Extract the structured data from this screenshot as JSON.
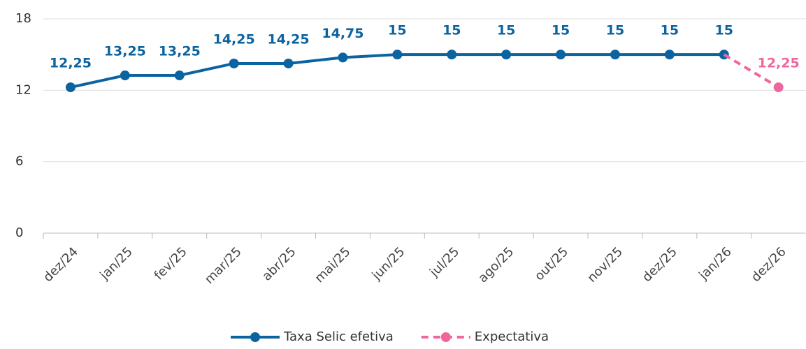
{
  "chart_data": {
    "type": "line",
    "categories": [
      "dez/24",
      "jan/25",
      "fev/25",
      "mar/25",
      "abr/25",
      "mai/25",
      "jun/25",
      "jul/25",
      "ago/25",
      "out/25",
      "nov/25",
      "dez/25",
      "jan/26",
      "dez/26"
    ],
    "series": [
      {
        "name": "Taxa Selic efetiva",
        "color": "#0b63a0",
        "dashed": false,
        "values": [
          12.25,
          13.25,
          13.25,
          14.25,
          14.25,
          14.75,
          15,
          15,
          15,
          15,
          15,
          15,
          15,
          null
        ],
        "value_labels": [
          "12,25",
          "13,25",
          "13,25",
          "14,25",
          "14,25",
          "14,75",
          "15",
          "15",
          "15",
          "15",
          "15",
          "15",
          "15",
          null
        ]
      },
      {
        "name": "Expectativa",
        "color": "#f0679e",
        "dashed": true,
        "values": [
          null,
          null,
          null,
          null,
          null,
          null,
          null,
          null,
          null,
          null,
          null,
          null,
          15,
          12.25
        ],
        "value_labels": [
          null,
          null,
          null,
          null,
          null,
          null,
          null,
          null,
          null,
          null,
          null,
          null,
          null,
          "12,25"
        ]
      }
    ],
    "ylim": [
      0,
      18
    ],
    "yticks": [
      0,
      6,
      12,
      18
    ],
    "grid": true
  }
}
